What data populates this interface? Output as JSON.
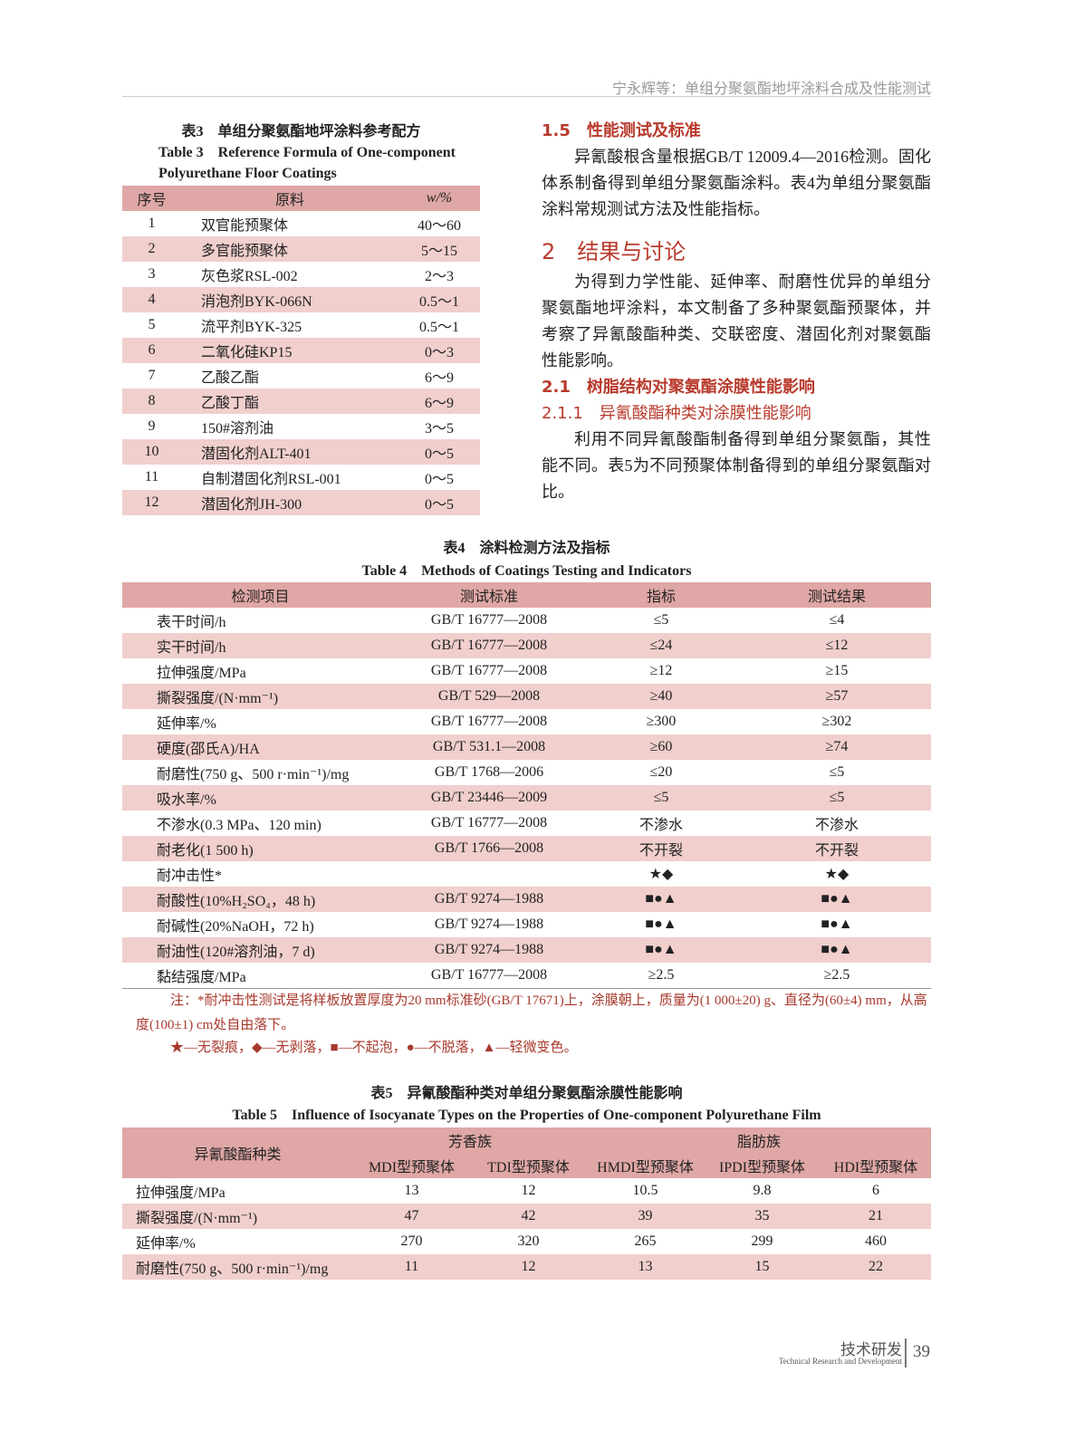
{
  "header": {
    "running_title": "宁永辉等：单组分聚氨酯地坪涂料合成及性能测试"
  },
  "table3": {
    "caption_cn": "表3　单组分聚氨酯地坪涂料参考配方",
    "caption_en": "Table 3　Reference Formula of One-component Polyurethane Floor Coatings",
    "headers": [
      "序号",
      "原料",
      "w/%"
    ],
    "rows": [
      [
        "1",
        "双官能预聚体",
        "40～60"
      ],
      [
        "2",
        "多官能预聚体",
        "5～15"
      ],
      [
        "3",
        "灰色浆RSL-002",
        "2～3"
      ],
      [
        "4",
        "消泡剂BYK-066N",
        "0.5～1"
      ],
      [
        "5",
        "流平剂BYK-325",
        "0.5～1"
      ],
      [
        "6",
        "二氧化硅KP15",
        "0～3"
      ],
      [
        "7",
        "乙酸乙酯",
        "6～9"
      ],
      [
        "8",
        "乙酸丁酯",
        "6～9"
      ],
      [
        "9",
        "150#溶剂油",
        "3～5"
      ],
      [
        "10",
        "潜固化剂ALT-401",
        "0～5"
      ],
      [
        "11",
        "自制潜固化剂RSL-001",
        "0～5"
      ],
      [
        "12",
        "潜固化剂JH-300",
        "0～5"
      ]
    ]
  },
  "sections": [
    {
      "heading": "1.5　性能测试及标准",
      "paragraph": "异氰酸根含量根据GB/T 12009.4—2016检测。固化体系制备得到单组分聚氨酯涂料。表4为单组分聚氨酯涂料常规测试方法及性能指标。"
    },
    {
      "heading": "2　结果与讨论",
      "paragraph": "为得到力学性能、延伸率、耐磨性优异的单组分聚氨酯地坪涂料，本文制备了多种聚氨酯预聚体，并考察了异氰酸酯种类、交联密度、潜固化剂对聚氨酯性能影响。"
    },
    {
      "heading": "2.1　树脂结构对聚氨酯涂膜性能影响"
    },
    {
      "heading": "2.1.1　异氰酸酯种类对涂膜性能影响",
      "paragraph": "利用不同异氰酸酯制备得到单组分聚氨酯，其性能不同。表5为不同预聚体制备得到的单组分聚氨酯对比。"
    }
  ],
  "table4": {
    "caption_cn": "表4　涂料检测方法及指标",
    "caption_en": "Table 4　Methods of Coatings Testing and Indicators",
    "headers": [
      "检测项目",
      "测试标准",
      "指标",
      "测试结果"
    ],
    "rows": [
      [
        "表干时间/h",
        "GB/T 16777—2008",
        "≤5",
        "≤4"
      ],
      [
        "实干时间/h",
        "GB/T 16777—2008",
        "≤24",
        "≤12"
      ],
      [
        "拉伸强度/MPa",
        "GB/T 16777—2008",
        "≥12",
        "≥15"
      ],
      [
        "撕裂强度/(N·mm⁻¹)",
        "GB/T 529—2008",
        "≥40",
        "≥57"
      ],
      [
        "延伸率/%",
        "GB/T 16777—2008",
        "≥300",
        "≥302"
      ],
      [
        "硬度(邵氏A)/HA",
        "GB/T 531.1—2008",
        "≥60",
        "≥74"
      ],
      [
        "耐磨性(750 g、500 r·min⁻¹)/mg",
        "GB/T 1768—2006",
        "≤20",
        "≤5"
      ],
      [
        "吸水率/%",
        "GB/T 23446—2009",
        "≤5",
        "≤5"
      ],
      [
        "不渗水(0.3 MPa、120 min)",
        "GB/T 16777—2008",
        "不渗水",
        "不渗水"
      ],
      [
        "耐老化(1 500 h)",
        "GB/T 1766—2008",
        "不开裂",
        "不开裂"
      ],
      [
        "耐冲击性*",
        "",
        "★◆",
        "★◆"
      ],
      [
        "耐酸性(10%H₂SO₄，48 h)",
        "GB/T 9274—1988",
        "■●▲",
        "■●▲"
      ],
      [
        "耐碱性(20%NaOH，72 h)",
        "GB/T 9274—1988",
        "■●▲",
        "■●▲"
      ],
      [
        "耐油性(120#溶剂油，7 d)",
        "GB/T 9274—1988",
        "■●▲",
        "■●▲"
      ],
      [
        "黏结强度/MPa",
        "GB/T 16777—2008",
        "≥2.5",
        "≥2.5"
      ]
    ],
    "note": "注：*耐冲击性测试是将样板放置厚度为20 mm标准砂(GB/T 17671)上，涂膜朝上，质量为(1 000±20) g、直径为(60±4) mm，从高度(100±1) cm处自由落下。",
    "legend": "★—无裂痕，◆—无剥落，■—不起泡，●—不脱落，▲—轻微变色。"
  },
  "table5": {
    "caption_cn": "表5　异氰酸酯种类对单组分聚氨酯涂膜性能影响",
    "caption_en": "Table 5　Influence of Isocyanate Types on the Properties of One-component Polyurethane Film",
    "row_header": "异氰酸酯种类",
    "groups": [
      "芳香族",
      "脂肪族"
    ],
    "columns": [
      "MDI型预聚体",
      "TDI型预聚体",
      "HMDI型预聚体",
      "IPDI型预聚体",
      "HDI型预聚体"
    ],
    "rows": [
      {
        "name": "拉伸强度/MPa",
        "values": [
          13,
          12,
          10.5,
          9.8,
          6
        ]
      },
      {
        "name": "撕裂强度/(N·mm⁻¹)",
        "values": [
          47,
          42,
          39,
          35,
          21
        ]
      },
      {
        "name": "延伸率/%",
        "values": [
          270,
          320,
          265,
          299,
          460
        ]
      },
      {
        "name": "耐磨性(750 g、500 r·min⁻¹)/mg",
        "values": [
          11,
          12,
          13,
          15,
          22
        ]
      }
    ]
  },
  "footer": {
    "section_cn": "技术研发",
    "section_en": "Technical Research and Development",
    "page": "39"
  }
}
